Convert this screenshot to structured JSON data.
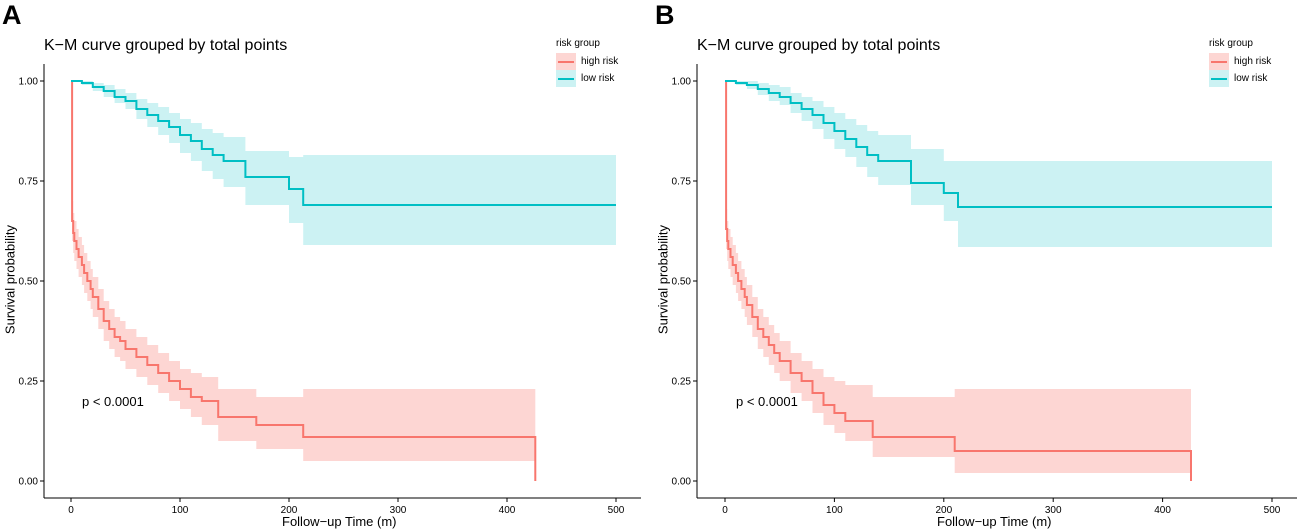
{
  "chart_data": [
    {
      "panel": "A",
      "type": "line",
      "title": "K−M curve grouped by total points",
      "xlabel": "Follow−up Time (m)",
      "ylabel": "Survival probability",
      "xlim": [
        0,
        500
      ],
      "ylim": [
        0,
        1
      ],
      "xticks": [
        "0",
        "100",
        "200",
        "300",
        "400",
        "500"
      ],
      "yticks": [
        "0.00",
        "0.25",
        "0.50",
        "0.75",
        "1.00"
      ],
      "legend_title": "risk group",
      "annotation": "p < 0.0001",
      "colors": {
        "high": "#F8766D",
        "low": "#00BFC4",
        "high_band": "#F8766D",
        "low_band": "#00BFC4"
      },
      "series": [
        {
          "name": "high risk",
          "x": [
            0,
            1,
            2,
            3,
            5,
            7,
            10,
            12,
            15,
            18,
            20,
            25,
            30,
            35,
            40,
            45,
            50,
            60,
            70,
            80,
            90,
            100,
            110,
            120,
            135,
            170,
            213,
            425,
            426
          ],
          "y": [
            1.0,
            0.65,
            0.62,
            0.6,
            0.58,
            0.56,
            0.54,
            0.52,
            0.5,
            0.48,
            0.46,
            0.43,
            0.4,
            0.38,
            0.36,
            0.35,
            0.33,
            0.31,
            0.29,
            0.27,
            0.25,
            0.23,
            0.21,
            0.2,
            0.16,
            0.14,
            0.11,
            0.11,
            0.0
          ],
          "lower": [
            1.0,
            0.6,
            0.57,
            0.55,
            0.53,
            0.51,
            0.49,
            0.47,
            0.45,
            0.43,
            0.41,
            0.38,
            0.35,
            0.33,
            0.31,
            0.3,
            0.28,
            0.26,
            0.24,
            0.22,
            0.2,
            0.18,
            0.16,
            0.14,
            0.1,
            0.08,
            0.05,
            0.05,
            0.05
          ],
          "upper": [
            1.0,
            0.7,
            0.67,
            0.65,
            0.63,
            0.61,
            0.59,
            0.57,
            0.55,
            0.53,
            0.51,
            0.48,
            0.45,
            0.43,
            0.41,
            0.4,
            0.38,
            0.36,
            0.34,
            0.32,
            0.3,
            0.28,
            0.27,
            0.26,
            0.23,
            0.21,
            0.23,
            0.23,
            0.23
          ]
        },
        {
          "name": "low risk",
          "x": [
            0,
            10,
            20,
            30,
            40,
            50,
            60,
            70,
            80,
            90,
            100,
            110,
            120,
            130,
            140,
            160,
            200,
            213,
            500
          ],
          "y": [
            1.0,
            0.995,
            0.985,
            0.975,
            0.96,
            0.95,
            0.93,
            0.915,
            0.9,
            0.885,
            0.865,
            0.85,
            0.83,
            0.815,
            0.8,
            0.76,
            0.73,
            0.69,
            0.69
          ],
          "lower": [
            1.0,
            0.99,
            0.975,
            0.96,
            0.945,
            0.93,
            0.905,
            0.885,
            0.865,
            0.845,
            0.82,
            0.8,
            0.775,
            0.755,
            0.735,
            0.69,
            0.645,
            0.59,
            0.59
          ],
          "upper": [
            1.0,
            1.0,
            0.995,
            0.99,
            0.98,
            0.97,
            0.955,
            0.945,
            0.935,
            0.92,
            0.905,
            0.895,
            0.88,
            0.87,
            0.86,
            0.825,
            0.81,
            0.815,
            0.815
          ]
        }
      ]
    },
    {
      "panel": "B",
      "type": "line",
      "title": "K−M curve grouped by total points",
      "xlabel": "Follow−up Time (m)",
      "ylabel": "Survival probability",
      "xlim": [
        0,
        500
      ],
      "ylim": [
        0,
        1
      ],
      "xticks": [
        "0",
        "100",
        "200",
        "300",
        "400",
        "500"
      ],
      "yticks": [
        "0.00",
        "0.25",
        "0.50",
        "0.75",
        "1.00"
      ],
      "legend_title": "risk group",
      "annotation": "p < 0.0001",
      "colors": {
        "high": "#F8766D",
        "low": "#00BFC4",
        "high_band": "#F8766D",
        "low_band": "#00BFC4"
      },
      "series": [
        {
          "name": "high risk",
          "x": [
            0,
            1,
            2,
            3,
            5,
            7,
            10,
            12,
            15,
            18,
            20,
            25,
            30,
            35,
            40,
            45,
            50,
            60,
            70,
            80,
            90,
            100,
            110,
            135,
            210,
            425,
            426
          ],
          "y": [
            1.0,
            0.63,
            0.6,
            0.58,
            0.56,
            0.54,
            0.52,
            0.5,
            0.48,
            0.46,
            0.44,
            0.41,
            0.38,
            0.36,
            0.34,
            0.32,
            0.3,
            0.27,
            0.25,
            0.22,
            0.19,
            0.17,
            0.15,
            0.11,
            0.075,
            0.075,
            0.0
          ],
          "lower": [
            1.0,
            0.58,
            0.55,
            0.53,
            0.51,
            0.49,
            0.47,
            0.45,
            0.43,
            0.41,
            0.39,
            0.36,
            0.33,
            0.31,
            0.29,
            0.27,
            0.25,
            0.22,
            0.2,
            0.17,
            0.14,
            0.12,
            0.1,
            0.06,
            0.02,
            0.02,
            0.02
          ],
          "upper": [
            1.0,
            0.68,
            0.65,
            0.63,
            0.61,
            0.59,
            0.57,
            0.55,
            0.53,
            0.51,
            0.49,
            0.46,
            0.43,
            0.41,
            0.39,
            0.37,
            0.35,
            0.32,
            0.3,
            0.28,
            0.26,
            0.25,
            0.24,
            0.21,
            0.23,
            0.23,
            0.23
          ]
        },
        {
          "name": "low risk",
          "x": [
            0,
            10,
            20,
            30,
            40,
            50,
            60,
            70,
            80,
            90,
            100,
            110,
            120,
            130,
            140,
            170,
            200,
            213,
            500
          ],
          "y": [
            1.0,
            0.995,
            0.99,
            0.98,
            0.97,
            0.96,
            0.945,
            0.93,
            0.915,
            0.895,
            0.875,
            0.855,
            0.835,
            0.815,
            0.8,
            0.745,
            0.72,
            0.685,
            0.685
          ],
          "lower": [
            1.0,
            0.99,
            0.98,
            0.965,
            0.95,
            0.94,
            0.92,
            0.9,
            0.88,
            0.855,
            0.83,
            0.81,
            0.785,
            0.76,
            0.74,
            0.69,
            0.65,
            0.585,
            0.585
          ],
          "upper": [
            1.0,
            1.0,
            1.0,
            0.995,
            0.99,
            0.985,
            0.97,
            0.96,
            0.95,
            0.935,
            0.92,
            0.905,
            0.89,
            0.875,
            0.865,
            0.83,
            0.8,
            0.8,
            0.8
          ]
        }
      ]
    }
  ]
}
